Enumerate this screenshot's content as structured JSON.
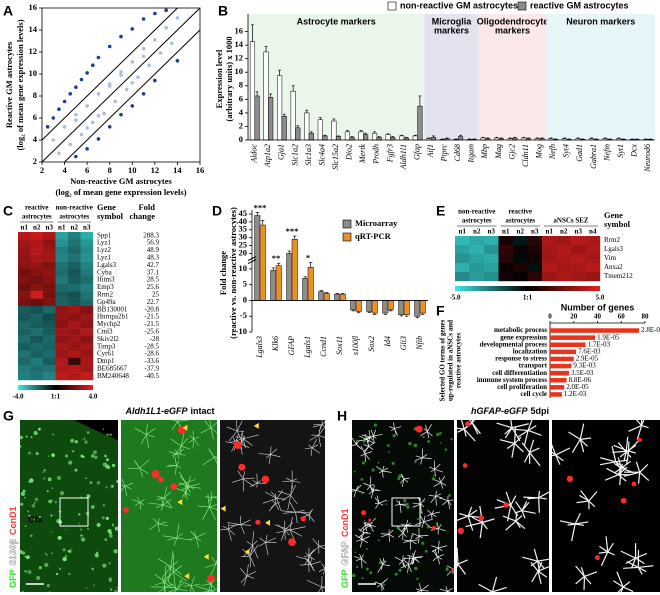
{
  "chart_data": [
    {
      "panel": "A",
      "type": "scatter",
      "xlabel": [
        "Non-reactive GM astrocytes",
        "(log₂ of mean gene expression levels)"
      ],
      "ylabel": [
        "Reactive GM astrocytes",
        "(log₂ of mean gene expression levels)"
      ],
      "xlim": [
        2,
        16
      ],
      "ylim": [
        2,
        16
      ],
      "xticks": [
        2,
        4,
        6,
        8,
        10,
        12,
        14,
        16
      ],
      "yticks": [
        2,
        4,
        6,
        8,
        10,
        12,
        14,
        16
      ],
      "reference_lines": [
        -2,
        0,
        2
      ],
      "series": [
        {
          "color": "#a9bfe0",
          "x": [
            3,
            3.5,
            4,
            4.5,
            5,
            5.5,
            6,
            6.5,
            7,
            7.5,
            8,
            8.5,
            9,
            9.5,
            10,
            10.5,
            11,
            11.5,
            12,
            12.5,
            13,
            13.5,
            14,
            6,
            8,
            10,
            5,
            7,
            9,
            11
          ],
          "y": [
            4,
            2.8,
            5.2,
            3.6,
            6.3,
            4.5,
            7.1,
            5.6,
            8.2,
            6.4,
            9.1,
            7.5,
            10.2,
            8.6,
            11.1,
            9.7,
            12.3,
            10.8,
            13.1,
            11.9,
            14.2,
            12.8,
            15.1,
            5.1,
            8.9,
            9.2,
            5.8,
            6.2,
            9.9,
            11.6
          ]
        },
        {
          "color": "#1f3f8f",
          "x": [
            2.5,
            3,
            3.5,
            4,
            4.5,
            5,
            5.5,
            6,
            6.5,
            7,
            8,
            9,
            10,
            11,
            12,
            13,
            5,
            6,
            7,
            8,
            9,
            10,
            11,
            12,
            14
          ],
          "y": [
            5.2,
            6,
            6.8,
            7.5,
            8.2,
            8.8,
            9.5,
            10.1,
            10.8,
            11.5,
            12.5,
            13.4,
            14.1,
            15,
            15.5,
            15.8,
            2.5,
            3.2,
            4.1,
            5.2,
            6.3,
            7.1,
            8.2,
            9.4,
            11.2
          ]
        }
      ]
    },
    {
      "panel": "B",
      "type": "bar",
      "ylabel": [
        "Expression level",
        "(arbitrary units) x 1000"
      ],
      "ylim": [
        0,
        18
      ],
      "yticks": [
        0,
        2,
        4,
        6,
        8,
        10,
        12,
        14,
        16
      ],
      "legend": "top",
      "categories": [
        "Aldoc",
        "Atp1a2",
        "Gja1",
        "Slc1a2",
        "Slc1a3",
        "Slc4a4",
        "Slc15a2",
        "Dio2",
        "Mertk",
        "Prodh",
        "Fgfr3",
        "Aldh1l1",
        "Gfap",
        "Aif1",
        "Ptprc",
        "Cd68",
        "Itgam",
        "Mbp",
        "Mag",
        "Gjc2",
        "Cldn11",
        "Mog",
        "Nefh",
        "Syt4",
        "Gad1",
        "Gabra1",
        "Nefm",
        "Syt1",
        "Dcx",
        "Neurod6"
      ],
      "groups": [
        {
          "label": [
            "Astrocyte markers"
          ],
          "count": 13,
          "color": "#eaf6ea"
        },
        {
          "label": [
            "Microglia",
            "markers"
          ],
          "count": 4,
          "color": "#e4e2ef"
        },
        {
          "label": [
            "Oligodendrocyte",
            "markers"
          ],
          "count": 5,
          "color": "#fbe9e9"
        },
        {
          "label": [
            "Neuron markers"
          ],
          "count": 8,
          "color": "#e6f6f8"
        }
      ],
      "series": [
        {
          "name": "non-reactive GM astrocytes",
          "color": "#ffffff",
          "values": [
            14.5,
            13.0,
            9.5,
            7.2,
            4.0,
            3.0,
            2.8,
            1.2,
            1.2,
            1.0,
            0.8,
            0.6,
            0.6,
            0.2,
            0.1,
            0.1,
            0.1,
            0.3,
            0.3,
            0.2,
            0.3,
            0.2,
            0.2,
            0.2,
            0.2,
            0.2,
            0.2,
            0.2,
            0.1,
            0.1
          ],
          "errors": [
            2.5,
            0.8,
            0.8,
            0.8,
            0.4,
            0.3,
            0.3,
            0.2,
            0.2,
            0.2,
            0.1,
            0.1,
            0.1,
            0.1,
            0.05,
            0.05,
            0.05,
            0.1,
            0.1,
            0.1,
            0.1,
            0.1,
            0.1,
            0.1,
            0.1,
            0.1,
            0.1,
            0.1,
            0.05,
            0.05
          ]
        },
        {
          "name": "reactive GM astrocytes",
          "color": "#8c8c8c",
          "values": [
            6.5,
            6.3,
            3.5,
            1.8,
            1.0,
            0.6,
            0.5,
            0.4,
            0.8,
            0.4,
            0.4,
            0.3,
            5.0,
            0.4,
            0.2,
            0.5,
            0.1,
            0.2,
            0.2,
            0.3,
            0.2,
            0.2,
            0.1,
            0.1,
            0.1,
            0.1,
            0.1,
            0.1,
            0.1,
            0.1
          ],
          "errors": [
            0.6,
            0.5,
            0.3,
            0.3,
            0.2,
            0.1,
            0.1,
            0.1,
            0.2,
            0.1,
            0.1,
            0.1,
            1.5,
            0.2,
            0.1,
            0.2,
            0.05,
            0.1,
            0.1,
            0.1,
            0.1,
            0.1,
            0.05,
            0.05,
            0.05,
            0.05,
            0.05,
            0.05,
            0.05,
            0.05
          ]
        }
      ]
    },
    {
      "panel": "C",
      "type": "heatmap",
      "column_groups": [
        {
          "label": [
            "reactive",
            "astrocytes"
          ],
          "count": 3
        },
        {
          "label": [
            "non-reactive",
            "astrocytes"
          ],
          "count": 3
        }
      ],
      "columns": [
        "n1",
        "n2",
        "n3",
        "n1",
        "n2",
        "n3"
      ],
      "row_header": [
        "Gene",
        "symbol"
      ],
      "value_header": [
        "Fold",
        "change"
      ],
      "rows": [
        "Spp1",
        "Lyz1",
        "Lyz2",
        "Lyz1",
        "Lgals3",
        "Cyba",
        "Ifitm3",
        "Emp3",
        "Rrm2",
        "Gp49a",
        "BB130001",
        "Hnrnpa2b1",
        "Mychp2",
        "Cml3",
        "Skiv2l2",
        "Timp3",
        "Cyr61",
        "Dmp1",
        "BE685667",
        "BM240648"
      ],
      "fold_change": [
        288.3,
        56.9,
        48.9,
        48.3,
        42.7,
        37.1,
        28.5,
        25.6,
        25.0,
        22.7,
        -20.8,
        -21.5,
        -21.5,
        -25.6,
        -28.0,
        -28.5,
        -28.6,
        -33.6,
        -37.9,
        -40.5
      ],
      "values": [
        [
          3.2,
          3.5,
          3.0,
          -2.8,
          -2.2,
          -3.0
        ],
        [
          2.8,
          3.0,
          2.5,
          -2.5,
          -2.0,
          -2.6
        ],
        [
          2.6,
          3.1,
          2.7,
          -2.2,
          -1.8,
          -2.4
        ],
        [
          2.5,
          2.9,
          2.8,
          -2.3,
          -2.0,
          -2.5
        ],
        [
          2.4,
          2.6,
          2.2,
          -2.0,
          -1.7,
          -2.3
        ],
        [
          2.0,
          2.3,
          2.5,
          -1.9,
          -1.5,
          -2.1
        ],
        [
          2.2,
          2.0,
          2.4,
          -2.1,
          -1.6,
          -1.9
        ],
        [
          1.9,
          2.4,
          2.1,
          -1.8,
          -1.9,
          -2.2
        ],
        [
          2.3,
          3.6,
          2.0,
          -1.6,
          -1.4,
          -2.0
        ],
        [
          2.1,
          1.9,
          2.2,
          -1.7,
          -1.5,
          -1.8
        ],
        [
          -1.6,
          -1.4,
          -1.8,
          2.5,
          2.8,
          2.3
        ],
        [
          -1.5,
          -1.7,
          -1.3,
          2.6,
          2.4,
          2.7
        ],
        [
          -1.8,
          -1.6,
          -1.5,
          2.4,
          2.9,
          2.5
        ],
        [
          -1.7,
          -1.9,
          -1.6,
          2.8,
          2.6,
          3.0
        ],
        [
          -1.9,
          -1.5,
          -1.8,
          2.5,
          2.7,
          2.4
        ],
        [
          -1.6,
          -1.8,
          -1.7,
          2.9,
          2.6,
          2.8
        ],
        [
          -2.0,
          -1.7,
          -1.9,
          2.7,
          3.0,
          2.6
        ],
        [
          -1.8,
          -2.1,
          -1.6,
          3.1,
          1.0,
          2.9
        ],
        [
          -2.1,
          -1.9,
          -2.0,
          3.0,
          3.2,
          2.8
        ],
        [
          -2.2,
          -2.0,
          -2.3,
          3.3,
          3.1,
          3.4
        ]
      ],
      "zlim": [
        -4,
        4
      ],
      "zticks": [
        {
          "value": -4,
          "label": "-4.0"
        },
        {
          "value": 0,
          "label": "1:1"
        },
        {
          "value": 4,
          "label": "4.0"
        }
      ],
      "colormap": [
        "#3ee6e6",
        "#000000",
        "#e62020"
      ]
    },
    {
      "panel": "D",
      "type": "bar",
      "ylabel": [
        "Fold change",
        "(reactive vs. non-reactive astrocytes)"
      ],
      "ylim": [
        -10,
        45
      ],
      "axis_break": [
        12,
        18
      ],
      "yticks": [
        -10,
        -5,
        0,
        5,
        10,
        20,
        25,
        30,
        35,
        40,
        45
      ],
      "legend": "upper right",
      "categories": [
        "Lgals3",
        "Klk6",
        "GFAP",
        "Lgals1",
        "Ccnd1",
        "Sox11",
        "s100β",
        "Sox2",
        "Id4",
        "Gli3",
        "Nfib"
      ],
      "significance": [
        "***",
        "**",
        "***",
        "*",
        null,
        null,
        null,
        null,
        null,
        null,
        null
      ],
      "series": [
        {
          "name": "Microarray",
          "color": "#8c8c8c",
          "values": [
            44,
            9.5,
            20,
            7,
            2.8,
            2,
            -3,
            -3.5,
            -4,
            -4.5,
            -5
          ],
          "errors": [
            2,
            0.8,
            1.5,
            0.5,
            0.3,
            0.2,
            0.3,
            0.3,
            0.4,
            0.4,
            0.5
          ]
        },
        {
          "name": "qRT-PCR",
          "color": "#e8902a",
          "values": [
            38,
            11,
            29,
            10.5,
            2.2,
            2,
            -3.5,
            -4,
            -3,
            -4.5,
            -4
          ],
          "errors": [
            3,
            0.8,
            2,
            1.5,
            0.3,
            0.2,
            0.4,
            0.5,
            0.3,
            0.5,
            0.4
          ]
        }
      ]
    },
    {
      "panel": "E",
      "type": "heatmap",
      "column_groups": [
        {
          "label": [
            "non-reactive",
            "astrocytes"
          ],
          "count": 3
        },
        {
          "label": [
            "reactive",
            "astrocytes"
          ],
          "count": 3
        },
        {
          "label": [
            "aNSCs SEZ"
          ],
          "count": 4
        }
      ],
      "columns": [
        "n1",
        "n2",
        "n3",
        "n1",
        "n2",
        "n3",
        "n1",
        "n2",
        "n3",
        "n4"
      ],
      "row_header": [
        "Gene",
        "symbol"
      ],
      "rows": [
        "Rrm2",
        "Lgals3",
        "Vim",
        "Anxa2",
        "Tmem212"
      ],
      "values": [
        [
          -4.0,
          -3.6,
          -3.8,
          0.5,
          -0.5,
          0.8,
          3.8,
          3.5,
          4.0,
          3.7
        ],
        [
          -3.5,
          -3.8,
          -3.2,
          1.0,
          0.3,
          0.6,
          3.6,
          3.9,
          3.4,
          3.8
        ],
        [
          -3.2,
          -3.5,
          -3.7,
          0.8,
          -0.2,
          0.4,
          3.5,
          3.7,
          3.9,
          3.6
        ],
        [
          -3.8,
          -3.3,
          -3.5,
          0.2,
          0.6,
          -0.3,
          3.9,
          3.6,
          3.7,
          4.0
        ],
        [
          -3.0,
          -3.4,
          -3.1,
          0.4,
          0.1,
          0.9,
          3.4,
          3.8,
          3.5,
          3.3
        ]
      ],
      "zlim": [
        -5,
        5
      ],
      "zticks": [
        {
          "value": -5,
          "label": "-5.0"
        },
        {
          "value": 0,
          "label": "1:1"
        },
        {
          "value": 5,
          "label": "5.0"
        }
      ],
      "colormap": [
        "#3ee6e6",
        "#000000",
        "#e62020"
      ]
    },
    {
      "panel": "F",
      "type": "hbar",
      "xlabel": "Number of genes",
      "ylabel": [
        "Selected GO terms of genes",
        "up-regulated in aNSCs and",
        "reactive astrocytes"
      ],
      "xlim": [
        0,
        80
      ],
      "xticks": [
        0,
        20,
        40,
        60,
        80
      ],
      "color": "#e8341c",
      "categories": [
        "metabolic process",
        "gene expression",
        "developmental process",
        "localization",
        "response to stress",
        "transport",
        "cell differentiation",
        "immune system process",
        "cell proliferation",
        "cell cycle"
      ],
      "values": [
        75,
        38,
        30,
        22,
        20,
        18,
        16,
        14,
        12,
        10
      ],
      "annotations": [
        "2.8E-09",
        "1.9E-05",
        "1.7E-03",
        "7.6E-03",
        "2.9E-05",
        "9.3E-03",
        "3.5E-03",
        "8.8E-06",
        "2.0E-05",
        "1.2E-03"
      ]
    }
  ],
  "images": [
    {
      "panel": "G",
      "title": [
        "Aldh1L1-eGFP",
        "intact"
      ],
      "region": "Ctx",
      "channels": [
        {
          "label": "GFP",
          "color": "#33dd33"
        },
        {
          "label": "S100β",
          "color": "#ffffff"
        },
        {
          "label": "CcnD1",
          "color": "#ff3333"
        }
      ]
    },
    {
      "panel": "H",
      "title": [
        "hGFAP-eGFP",
        "5dpi"
      ],
      "region": "Ctx",
      "channels": [
        {
          "label": "GFP",
          "color": "#33dd33"
        },
        {
          "label": "GFAP",
          "color": "#ffffff"
        },
        {
          "label": "CcnD1",
          "color": "#ff3333"
        }
      ]
    }
  ]
}
